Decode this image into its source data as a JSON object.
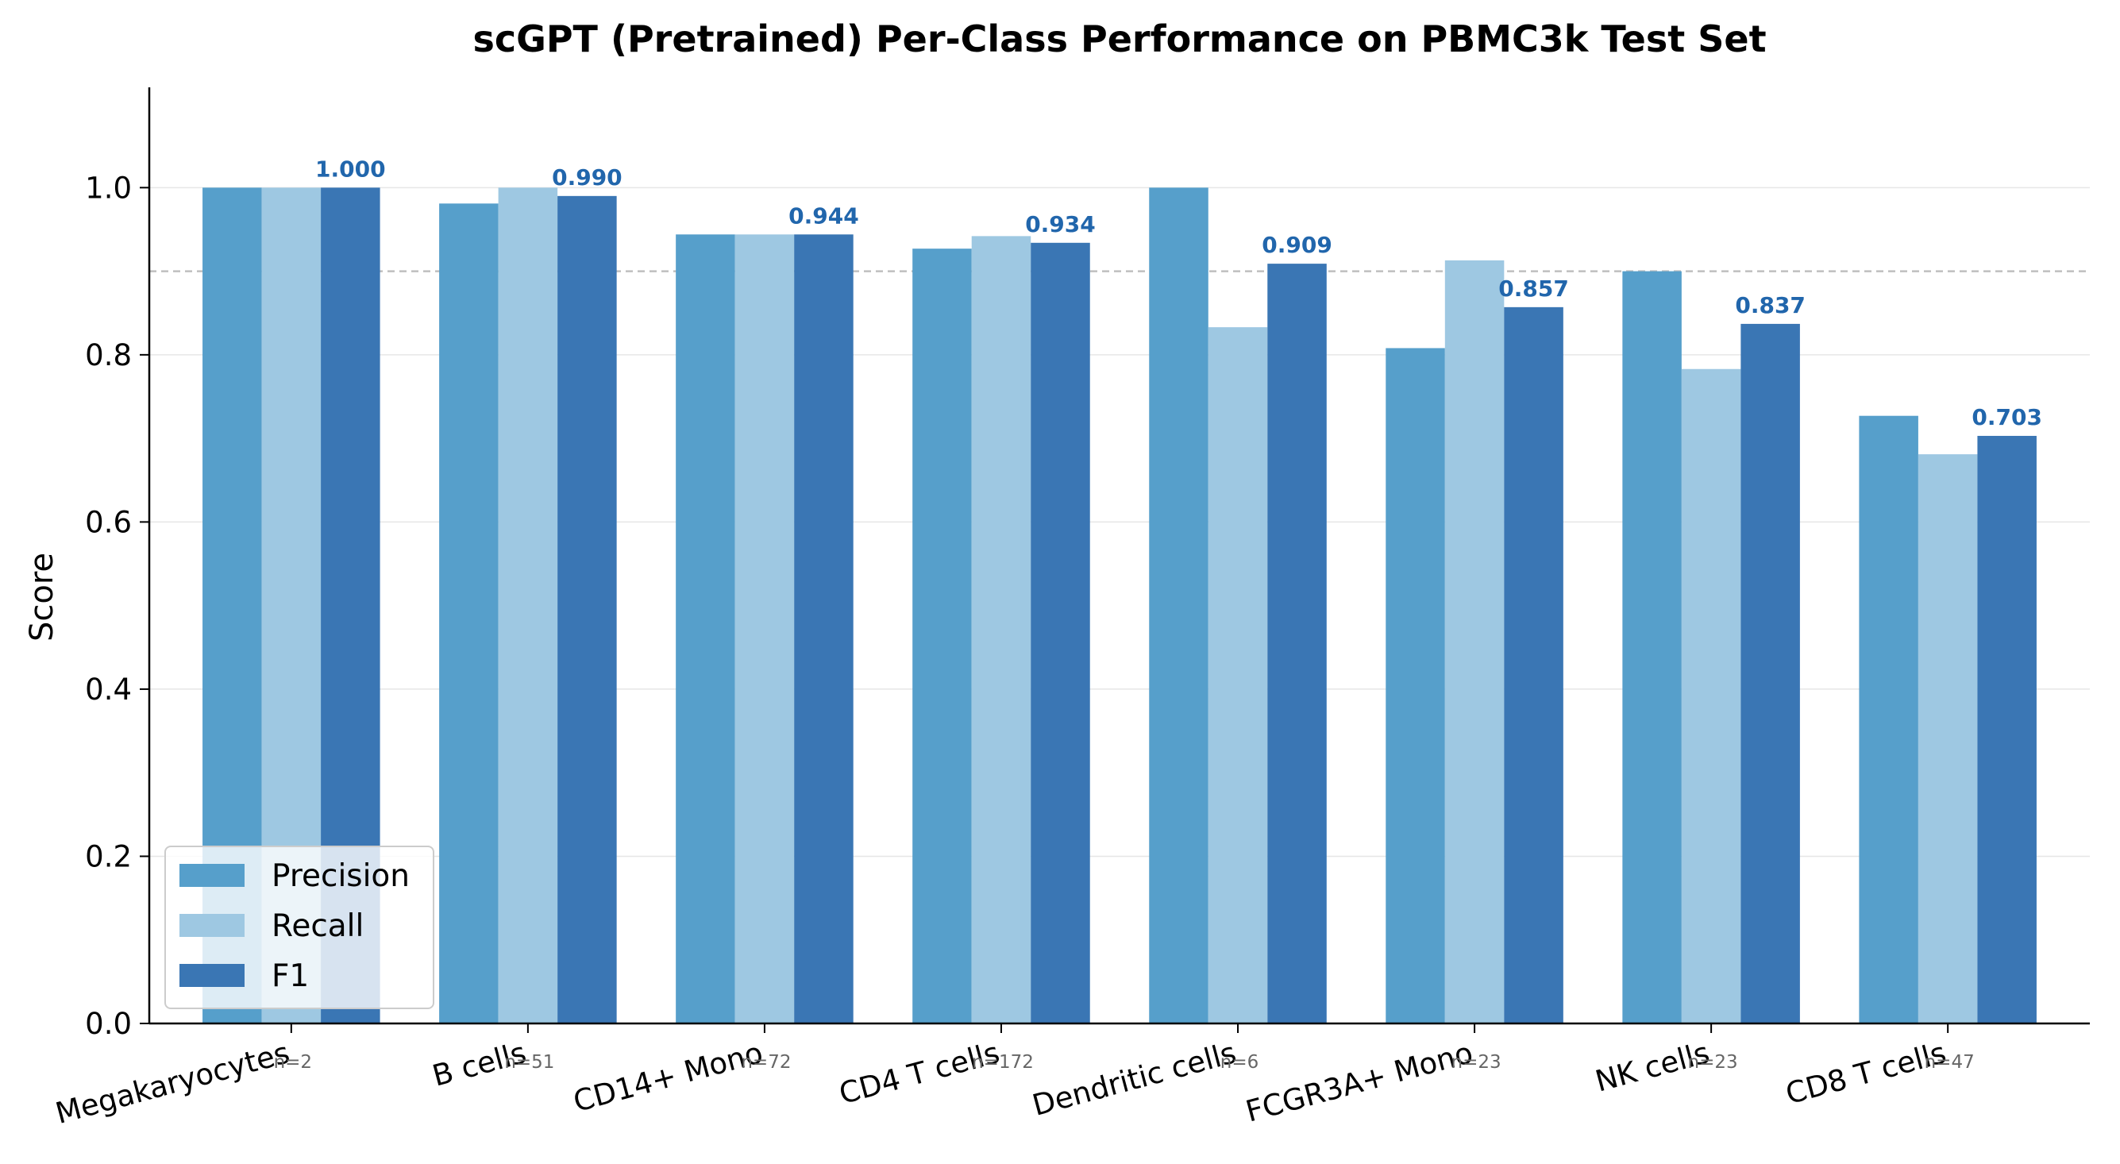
{
  "chart_data": {
    "type": "bar",
    "title": "scGPT (Pretrained) Per-Class Performance on PBMC3k Test Set",
    "xlabel": "",
    "ylabel": "Score",
    "ylim": [
      0,
      1.12
    ],
    "yticks": [
      "0.0",
      "0.2",
      "0.4",
      "0.6",
      "0.8",
      "1.0"
    ],
    "reference_line": 0.9,
    "grid": "horizontal",
    "legend_position": "lower-left",
    "categories": [
      "Megakaryocytes",
      "B cells",
      "CD14+ Mono",
      "CD4 T cells",
      "Dendritic cells",
      "FCGR3A+ Mono",
      "NK cells",
      "CD8 T cells"
    ],
    "counts": [
      "n=2",
      "n=51",
      "n=72",
      "n=172",
      "n=6",
      "n=23",
      "n=23",
      "n=47"
    ],
    "series": [
      {
        "name": "Precision",
        "color": "#569fcb",
        "values": [
          1.0,
          0.981,
          0.944,
          0.927,
          1.0,
          0.808,
          0.9,
          0.727
        ]
      },
      {
        "name": "Recall",
        "color": "#9ec8e2",
        "values": [
          1.0,
          1.0,
          0.944,
          0.942,
          0.833,
          0.913,
          0.783,
          0.681
        ]
      },
      {
        "name": "F1",
        "color": "#3a76b4",
        "values": [
          1.0,
          0.99,
          0.944,
          0.934,
          0.909,
          0.857,
          0.837,
          0.703
        ]
      }
    ],
    "f1_labels": [
      "1.000",
      "0.990",
      "0.944",
      "0.934",
      "0.909",
      "0.857",
      "0.837",
      "0.703"
    ]
  }
}
